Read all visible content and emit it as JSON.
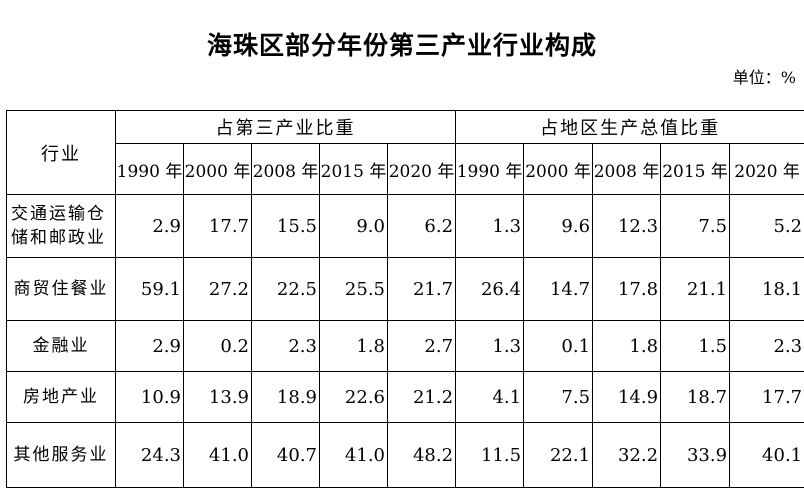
{
  "title": "海珠区部分年份第三产业行业构成",
  "unit": "单位：%",
  "header": {
    "industry": "行业",
    "group1": "占第三产业比重",
    "group2": "占地区生产总值比重",
    "years": [
      "1990 年",
      "2000 年",
      "2008 年",
      "2015 年",
      "2020 年",
      "1990 年",
      "2000 年",
      "2008 年",
      "2015 年",
      "2020 年"
    ]
  },
  "rows": [
    {
      "label": "交通运输仓储和邮政业",
      "values": [
        "2.9",
        "17.7",
        "15.5",
        "9.0",
        "6.2",
        "1.3",
        "9.6",
        "12.3",
        "7.5",
        "5.2"
      ]
    },
    {
      "label": "商贸住餐业",
      "values": [
        "59.1",
        "27.2",
        "22.5",
        "25.5",
        "21.7",
        "26.4",
        "14.7",
        "17.8",
        "21.1",
        "18.1"
      ]
    },
    {
      "label": "金融业",
      "values": [
        "2.9",
        "0.2",
        "2.3",
        "1.8",
        "2.7",
        "1.3",
        "0.1",
        "1.8",
        "1.5",
        "2.3"
      ]
    },
    {
      "label": "房地产业",
      "values": [
        "10.9",
        "13.9",
        "18.9",
        "22.6",
        "21.2",
        "4.1",
        "7.5",
        "14.9",
        "18.7",
        "17.7"
      ]
    },
    {
      "label": "其他服务业",
      "values": [
        "24.3",
        "41.0",
        "40.7",
        "41.0",
        "48.2",
        "11.5",
        "22.1",
        "32.2",
        "33.9",
        "40.1"
      ]
    }
  ]
}
